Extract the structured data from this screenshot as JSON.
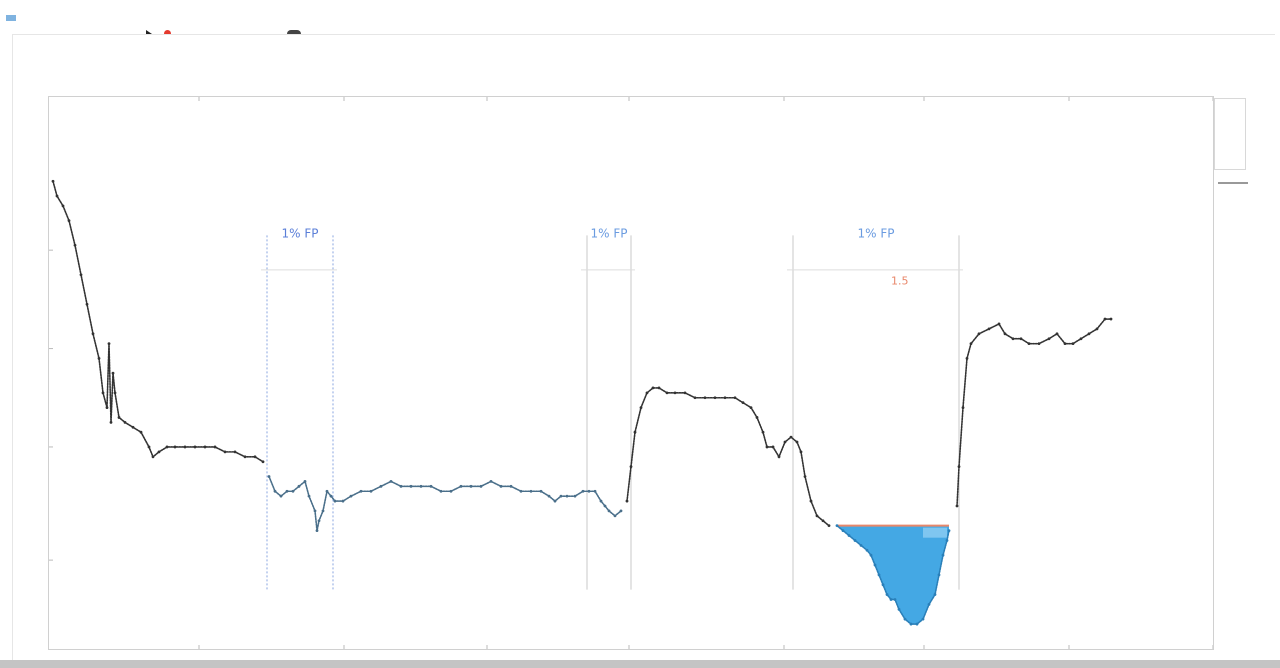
{
  "window": {
    "app_title": "",
    "right_label": ""
  },
  "toolbar": {
    "row1_label": "",
    "row2_label": "",
    "marker_label": "",
    "second_label": ""
  },
  "chart_data": {
    "type": "scatter",
    "title": "",
    "subtitle": "",
    "xlabel": "",
    "ylabel": "",
    "xlim": [
      0,
      1164
    ],
    "ylim": [
      0,
      1
    ],
    "grid": false,
    "series": [
      {
        "name": "",
        "color": "#333333",
        "points": [
          [
            4,
            0.91
          ],
          [
            8,
            0.88
          ],
          [
            14,
            0.86
          ],
          [
            20,
            0.83
          ],
          [
            26,
            0.78
          ],
          [
            32,
            0.72
          ],
          [
            38,
            0.66
          ],
          [
            44,
            0.6
          ],
          [
            50,
            0.55
          ],
          [
            54,
            0.48
          ],
          [
            58,
            0.45
          ],
          [
            60,
            0.58
          ],
          [
            62,
            0.42
          ],
          [
            64,
            0.52
          ],
          [
            66,
            0.48
          ],
          [
            70,
            0.43
          ],
          [
            76,
            0.42
          ],
          [
            84,
            0.41
          ],
          [
            92,
            0.4
          ],
          [
            100,
            0.37
          ],
          [
            104,
            0.35
          ],
          [
            110,
            0.36
          ],
          [
            118,
            0.37
          ],
          [
            126,
            0.37
          ],
          [
            136,
            0.37
          ],
          [
            146,
            0.37
          ],
          [
            156,
            0.37
          ],
          [
            166,
            0.37
          ],
          [
            176,
            0.36
          ],
          [
            186,
            0.36
          ],
          [
            196,
            0.35
          ],
          [
            206,
            0.35
          ],
          [
            214,
            0.34
          ]
        ]
      },
      {
        "name": "",
        "color": "#4a6f8a",
        "points": [
          [
            220,
            0.31
          ],
          [
            226,
            0.28
          ],
          [
            232,
            0.27
          ],
          [
            238,
            0.28
          ],
          [
            244,
            0.28
          ],
          [
            250,
            0.29
          ],
          [
            256,
            0.3
          ],
          [
            260,
            0.27
          ],
          [
            266,
            0.24
          ],
          [
            268,
            0.2
          ],
          [
            270,
            0.22
          ],
          [
            274,
            0.24
          ],
          [
            278,
            0.28
          ],
          [
            282,
            0.27
          ],
          [
            286,
            0.26
          ],
          [
            294,
            0.26
          ],
          [
            302,
            0.27
          ],
          [
            312,
            0.28
          ],
          [
            322,
            0.28
          ],
          [
            332,
            0.29
          ],
          [
            342,
            0.3
          ],
          [
            352,
            0.29
          ],
          [
            362,
            0.29
          ],
          [
            372,
            0.29
          ],
          [
            382,
            0.29
          ],
          [
            392,
            0.28
          ],
          [
            402,
            0.28
          ],
          [
            412,
            0.29
          ],
          [
            422,
            0.29
          ],
          [
            432,
            0.29
          ],
          [
            442,
            0.3
          ],
          [
            452,
            0.29
          ],
          [
            462,
            0.29
          ],
          [
            472,
            0.28
          ],
          [
            482,
            0.28
          ],
          [
            492,
            0.28
          ],
          [
            500,
            0.27
          ],
          [
            506,
            0.26
          ],
          [
            512,
            0.27
          ],
          [
            518,
            0.27
          ],
          [
            526,
            0.27
          ],
          [
            534,
            0.28
          ],
          [
            540,
            0.28
          ],
          [
            546,
            0.28
          ],
          [
            552,
            0.26
          ],
          [
            556,
            0.25
          ],
          [
            560,
            0.24
          ],
          [
            566,
            0.23
          ],
          [
            572,
            0.24
          ]
        ]
      },
      {
        "name": "",
        "color": "#333333",
        "points": [
          [
            578,
            0.26
          ],
          [
            582,
            0.33
          ],
          [
            586,
            0.4
          ],
          [
            592,
            0.45
          ],
          [
            598,
            0.48
          ],
          [
            604,
            0.49
          ],
          [
            610,
            0.49
          ],
          [
            618,
            0.48
          ],
          [
            626,
            0.48
          ],
          [
            636,
            0.48
          ],
          [
            646,
            0.47
          ],
          [
            656,
            0.47
          ],
          [
            666,
            0.47
          ],
          [
            676,
            0.47
          ],
          [
            686,
            0.47
          ],
          [
            694,
            0.46
          ],
          [
            702,
            0.45
          ],
          [
            708,
            0.43
          ],
          [
            714,
            0.4
          ],
          [
            718,
            0.37
          ],
          [
            724,
            0.37
          ],
          [
            730,
            0.35
          ],
          [
            736,
            0.38
          ],
          [
            742,
            0.39
          ],
          [
            748,
            0.38
          ],
          [
            752,
            0.36
          ],
          [
            756,
            0.31
          ],
          [
            762,
            0.26
          ],
          [
            768,
            0.23
          ],
          [
            774,
            0.22
          ],
          [
            780,
            0.21
          ]
        ]
      },
      {
        "name": "",
        "color": "#2a7fb8",
        "points": [
          [
            788,
            0.21
          ],
          [
            794,
            0.2
          ],
          [
            800,
            0.19
          ],
          [
            806,
            0.18
          ],
          [
            812,
            0.17
          ],
          [
            818,
            0.16
          ],
          [
            822,
            0.15
          ],
          [
            826,
            0.13
          ],
          [
            830,
            0.11
          ],
          [
            834,
            0.09
          ],
          [
            838,
            0.07
          ],
          [
            842,
            0.06
          ],
          [
            846,
            0.06
          ],
          [
            850,
            0.04
          ],
          [
            856,
            0.02
          ],
          [
            862,
            0.01
          ],
          [
            868,
            0.01
          ],
          [
            874,
            0.02
          ],
          [
            880,
            0.05
          ],
          [
            886,
            0.07
          ],
          [
            890,
            0.11
          ],
          [
            894,
            0.15
          ],
          [
            898,
            0.18
          ],
          [
            900,
            0.2
          ]
        ]
      },
      {
        "name": "",
        "color": "#333333",
        "points": [
          [
            908,
            0.25
          ],
          [
            910,
            0.33
          ],
          [
            914,
            0.45
          ],
          [
            918,
            0.55
          ],
          [
            922,
            0.58
          ],
          [
            930,
            0.6
          ],
          [
            940,
            0.61
          ],
          [
            950,
            0.62
          ],
          [
            956,
            0.6
          ],
          [
            964,
            0.59
          ],
          [
            972,
            0.59
          ],
          [
            980,
            0.58
          ],
          [
            990,
            0.58
          ],
          [
            1000,
            0.59
          ],
          [
            1008,
            0.6
          ],
          [
            1016,
            0.58
          ],
          [
            1024,
            0.58
          ],
          [
            1032,
            0.59
          ],
          [
            1040,
            0.6
          ],
          [
            1048,
            0.61
          ],
          [
            1056,
            0.63
          ],
          [
            1062,
            0.63
          ]
        ]
      }
    ],
    "fill_region": {
      "x_start": 788,
      "x_end": 900,
      "baseline": 0.21,
      "color": "#3aa3e3"
    },
    "vertical_bands": [
      {
        "label": "1% FP",
        "x_start": 218,
        "x_end": 284,
        "label_color": "#5b7fd8",
        "style": "dashed"
      },
      {
        "label": "1% FP",
        "x_start": 538,
        "x_end": 582,
        "label_color": "#6a9be0",
        "style": "solid"
      },
      {
        "label": "1% FP",
        "x_start": 744,
        "x_end": 910,
        "label_color": "#6a9be0",
        "style": "solid"
      }
    ],
    "annotations": [
      {
        "text": "1.5",
        "x": 842,
        "y": 0.7,
        "color": "#e8876a"
      },
      {
        "text": "",
        "x": 755,
        "y": 0.05,
        "color": "#e8876a"
      },
      {
        "text": "",
        "x": 940,
        "y": 0.05,
        "color": "#e8876a"
      }
    ],
    "x_ticks": [
      150,
      295,
      438,
      580,
      735,
      875,
      1020,
      1164
    ],
    "y_ticks": [
      0.14,
      0.37,
      0.57,
      0.77
    ]
  },
  "legend": {
    "title": "",
    "items": [
      "",
      "",
      "",
      ""
    ]
  },
  "colors": {
    "accent": "#3aa3e3",
    "band_line": "#c8c8c8",
    "frame": "#d0d0d0"
  }
}
